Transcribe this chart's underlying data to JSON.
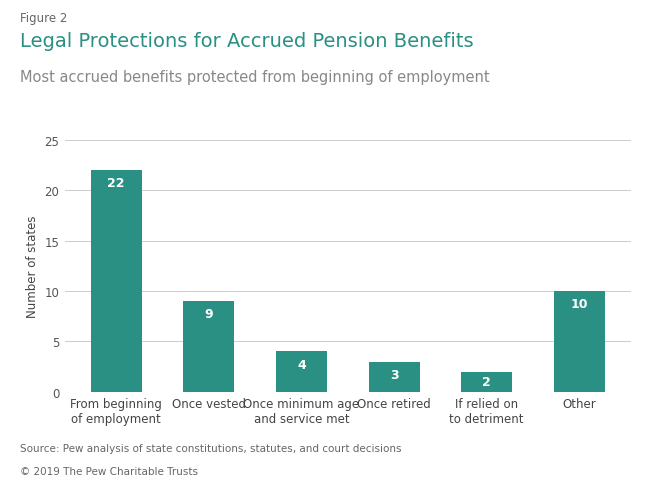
{
  "figure_label": "Figure 2",
  "title": "Legal Protections for Accrued Pension Benefits",
  "subtitle": "Most accrued benefits protected from beginning of employment",
  "categories": [
    "From beginning\nof employment",
    "Once vested",
    "Once minimum age\nand service met",
    "Once retired",
    "If relied on\nto detriment",
    "Other"
  ],
  "values": [
    22,
    9,
    4,
    3,
    2,
    10
  ],
  "bar_color": "#2a9084",
  "label_color": "#ffffff",
  "ylabel": "Number of states",
  "ylim": [
    0,
    25
  ],
  "yticks": [
    0,
    5,
    10,
    15,
    20,
    25
  ],
  "source_text": "Source: Pew analysis of state constitutions, statutes, and court decisions",
  "copyright_text": "© 2019 The Pew Charitable Trusts",
  "title_color": "#2a9084",
  "subtitle_color": "#888888",
  "figure_label_color": "#666666",
  "background_color": "#ffffff",
  "grid_color": "#cccccc",
  "title_fontsize": 14,
  "subtitle_fontsize": 10.5,
  "figure_label_fontsize": 8.5,
  "tick_label_fontsize": 8.5,
  "bar_label_fontsize": 9,
  "ylabel_fontsize": 8.5,
  "source_fontsize": 7.5,
  "copyright_fontsize": 7.5
}
